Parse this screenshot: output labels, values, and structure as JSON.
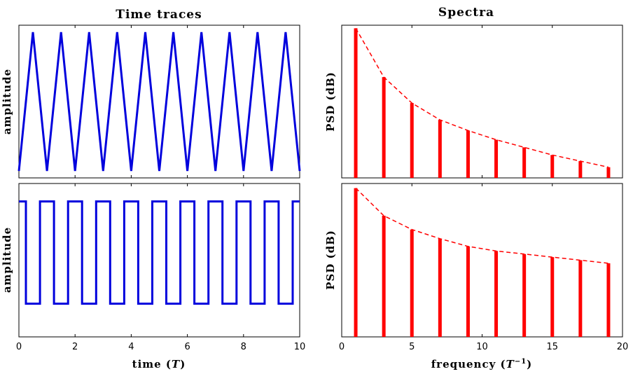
{
  "titles": {
    "left": "Time traces",
    "right": "Spectra"
  },
  "labels": {
    "amplitude": "amplitude",
    "psd": "PSD (dB)",
    "time_main": "time (",
    "time_unit": "T",
    "time_close": ")",
    "freq_main": "frequency (",
    "freq_unit": "T",
    "freq_exp": "−1",
    "freq_close": ")"
  },
  "colors": {
    "trace": "#0000dd",
    "spectrum": "#ff0000"
  },
  "chart_data": [
    {
      "id": "triangle-time",
      "type": "line",
      "ylabel": "amplitude",
      "xlim": [
        0,
        10
      ],
      "ylim": [
        -1.1,
        1.1
      ],
      "series": [
        {
          "x": [
            0,
            0.5,
            1,
            1.5,
            2,
            2.5,
            3,
            3.5,
            4,
            4.5,
            5,
            5.5,
            6,
            6.5,
            7,
            7.5,
            8,
            8.5,
            9,
            9.5,
            10
          ],
          "y": [
            -1,
            1,
            -1,
            1,
            -1,
            1,
            -1,
            1,
            -1,
            1,
            -1,
            1,
            -1,
            1,
            -1,
            1,
            -1,
            1,
            -1,
            1,
            -1
          ]
        }
      ]
    },
    {
      "id": "square-time",
      "type": "line",
      "ylabel": "amplitude",
      "xlabel": "time (T)",
      "xlim": [
        0,
        10
      ],
      "ylim": [
        -1.65,
        1.35
      ],
      "xticks": [
        0,
        2,
        4,
        6,
        8,
        10
      ],
      "series": [
        {
          "x": [
            0,
            0.25,
            0.25,
            0.75,
            0.75,
            1.25,
            1.25,
            1.75,
            1.75,
            2.25,
            2.25,
            2.75,
            2.75,
            3.25,
            3.25,
            3.75,
            3.75,
            4.25,
            4.25,
            4.75,
            4.75,
            5.25,
            5.25,
            5.75,
            5.75,
            6.25,
            6.25,
            6.75,
            6.75,
            7.25,
            7.25,
            7.75,
            7.75,
            8.25,
            8.25,
            8.75,
            8.75,
            9.25,
            9.25,
            9.75,
            9.75,
            10
          ],
          "y": [
            1,
            1,
            -1,
            -1,
            1,
            1,
            -1,
            -1,
            1,
            1,
            -1,
            -1,
            1,
            1,
            -1,
            -1,
            1,
            1,
            -1,
            -1,
            1,
            1,
            -1,
            -1,
            1,
            1,
            -1,
            -1,
            1,
            1,
            -1,
            -1,
            1,
            1,
            -1,
            -1,
            1,
            1,
            -1,
            -1,
            1,
            1
          ]
        }
      ]
    },
    {
      "id": "triangle-spectrum",
      "type": "bar",
      "ylabel": "PSD (dB)",
      "xlim": [
        0,
        20
      ],
      "ylim": [
        0,
        1
      ],
      "x": [
        1,
        3,
        5,
        7,
        9,
        11,
        13,
        15,
        17,
        19
      ],
      "values": [
        0.98,
        0.66,
        0.49,
        0.38,
        0.31,
        0.25,
        0.2,
        0.15,
        0.11,
        0.07
      ],
      "envelope": "dashed"
    },
    {
      "id": "square-spectrum",
      "type": "bar",
      "ylabel": "PSD (dB)",
      "xlabel": "frequency (T−1)",
      "xlim": [
        0,
        20
      ],
      "ylim": [
        0,
        1
      ],
      "xticks": [
        0,
        5,
        10,
        15,
        20
      ],
      "x": [
        1,
        3,
        5,
        7,
        9,
        11,
        13,
        15,
        17,
        19
      ],
      "values": [
        0.97,
        0.79,
        0.7,
        0.64,
        0.59,
        0.56,
        0.54,
        0.52,
        0.5,
        0.48
      ],
      "envelope": "dashed"
    }
  ]
}
